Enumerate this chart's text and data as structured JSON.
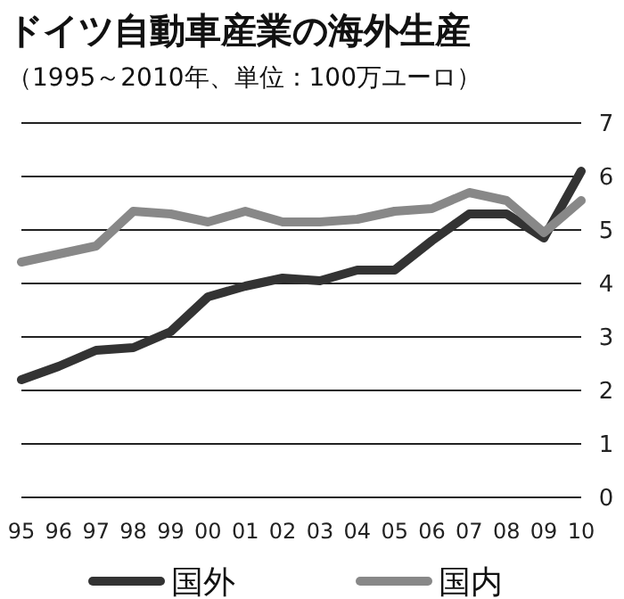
{
  "chart_data": {
    "type": "line",
    "title": "ドイツ自動車産業の海外生産",
    "subtitle": "（1995～2010年、単位：100万ユーロ）",
    "categories": [
      "95",
      "96",
      "97",
      "98",
      "99",
      "00",
      "01",
      "02",
      "03",
      "04",
      "05",
      "06",
      "07",
      "08",
      "09",
      "10"
    ],
    "series": [
      {
        "name": "国外",
        "color": "#333333",
        "values": [
          2.2,
          2.45,
          2.75,
          2.8,
          3.1,
          3.75,
          3.95,
          4.1,
          4.05,
          4.25,
          4.25,
          4.8,
          5.3,
          5.3,
          4.85,
          6.1
        ]
      },
      {
        "name": "国内",
        "color": "#888888",
        "values": [
          4.4,
          4.55,
          4.7,
          5.35,
          5.3,
          5.15,
          5.35,
          5.15,
          5.15,
          5.2,
          5.35,
          5.4,
          5.7,
          5.55,
          4.95,
          5.55
        ]
      }
    ],
    "ylim": [
      0,
      7
    ],
    "yticks": [
      0,
      1,
      2,
      3,
      4,
      5,
      6,
      7
    ],
    "grid": "y",
    "legend": "bottom",
    "marker": "none",
    "line_style": "solid"
  }
}
